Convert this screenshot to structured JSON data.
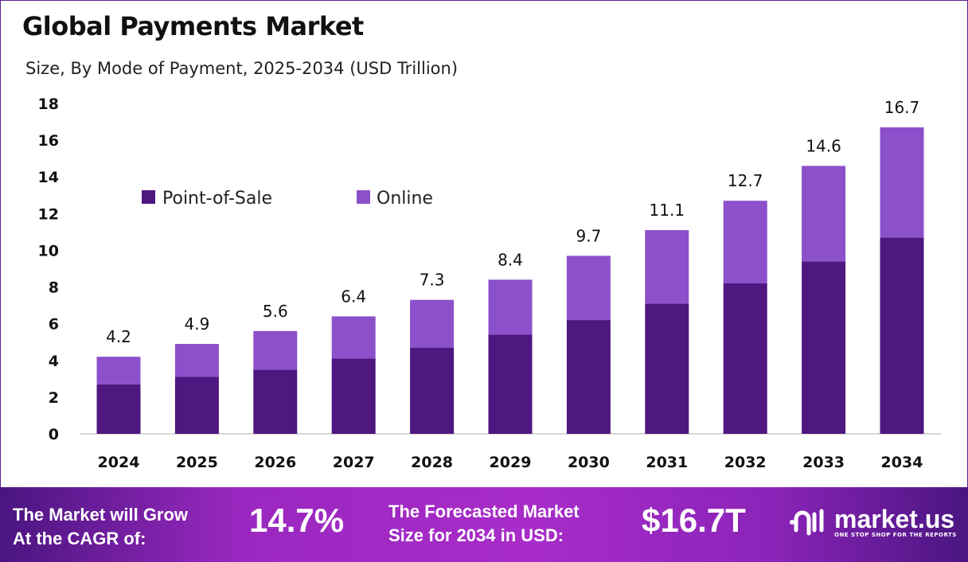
{
  "header": {
    "title": "Global Payments Market",
    "subtitle": "Size, By Mode of Payment, 2025-2034 (USD Trillion)"
  },
  "chart_data": {
    "type": "bar",
    "stacked": true,
    "categories": [
      "2024",
      "2025",
      "2026",
      "2027",
      "2028",
      "2029",
      "2030",
      "2031",
      "2032",
      "2033",
      "2034"
    ],
    "series": [
      {
        "name": "Point-of-Sale",
        "color": "#4f1780",
        "values": [
          2.7,
          3.1,
          3.5,
          4.1,
          4.7,
          5.4,
          6.2,
          7.1,
          8.2,
          9.4,
          10.7
        ]
      },
      {
        "name": "Online",
        "color": "#8c50cb",
        "values": [
          1.5,
          1.8,
          2.1,
          2.3,
          2.6,
          3.0,
          3.5,
          4.0,
          4.5,
          5.2,
          6.0
        ]
      }
    ],
    "totals": [
      "4.2",
      "4.9",
      "5.6",
      "6.4",
      "7.3",
      "8.4",
      "9.7",
      "11.1",
      "12.7",
      "14.6",
      "16.7"
    ],
    "yticks": [
      "0",
      "2",
      "4",
      "6",
      "8",
      "10",
      "12",
      "14",
      "16",
      "18"
    ],
    "ylim": [
      0,
      18
    ],
    "grid": false,
    "legend": "top-left"
  },
  "banner": {
    "cagr_label_1": "The Market will Grow",
    "cagr_label_2": "At the CAGR of:",
    "cagr_value": "14.7%",
    "forecast_label_1": "The Forecasted Market",
    "forecast_label_2": "Size for 2034 in USD:",
    "forecast_value": "$16.7T",
    "logo_name": "market.us",
    "logo_tagline": "ONE STOP SHOP FOR THE REPORTS"
  }
}
